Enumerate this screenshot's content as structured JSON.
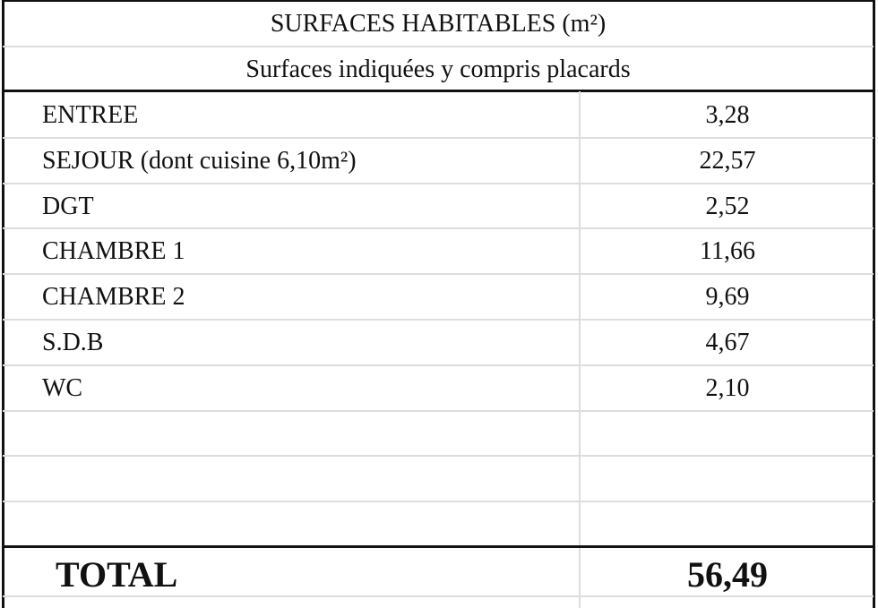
{
  "header": {
    "title": "SURFACES HABITABLES (m²)",
    "subtitle": "Surfaces indiquées y compris placards"
  },
  "table": {
    "rows": [
      [
        "ENTREE",
        "3,28"
      ],
      [
        "SEJOUR (dont cuisine 6,10m²)",
        "22,57"
      ],
      [
        "DGT",
        "2,52"
      ],
      [
        "CHAMBRE 1",
        "11,66"
      ],
      [
        "CHAMBRE 2",
        "9,69"
      ],
      [
        "S.D.B",
        "4,67"
      ],
      [
        "WC",
        "2,10"
      ]
    ],
    "total": {
      "label": "TOTAL",
      "value": "56,49"
    }
  }
}
